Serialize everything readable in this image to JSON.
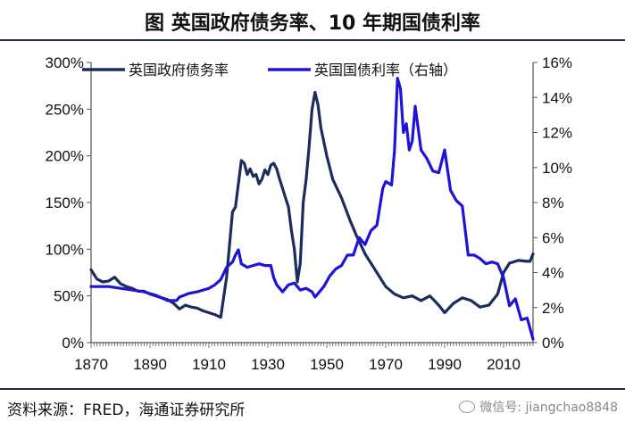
{
  "title": "图    英国政府债务率、10 年期国债利率",
  "source": "资料来源：FRED，海通证券研究所",
  "watermark": "微信号: jiangchao8848",
  "colors": {
    "debt": "#1a2d5c",
    "yield": "#1e13d9"
  },
  "chart_data": {
    "type": "line",
    "x_ticks": [
      "1870",
      "1890",
      "1910",
      "1930",
      "1950",
      "1970",
      "1990",
      "2010"
    ],
    "xlim": [
      1870,
      2020
    ],
    "y_left": {
      "ticks": [
        "0%",
        "50%",
        "100%",
        "150%",
        "200%",
        "250%",
        "300%"
      ],
      "lim": [
        0,
        300
      ]
    },
    "y_right": {
      "ticks": [
        "0%",
        "2%",
        "4%",
        "6%",
        "8%",
        "10%",
        "12%",
        "14%",
        "16%"
      ],
      "lim": [
        0,
        16
      ]
    },
    "series": [
      {
        "name": "英国政府债务率",
        "axis": "left",
        "x": [
          1870,
          1872,
          1874,
          1876,
          1878,
          1880,
          1882,
          1884,
          1886,
          1888,
          1890,
          1892,
          1894,
          1896,
          1898,
          1900,
          1902,
          1904,
          1906,
          1908,
          1910,
          1912,
          1914,
          1916,
          1918,
          1919,
          1920,
          1921,
          1922,
          1923,
          1924,
          1925,
          1926,
          1927,
          1928,
          1929,
          1930,
          1931,
          1932,
          1933,
          1934,
          1935,
          1936,
          1937,
          1938,
          1939,
          1940,
          1941,
          1942,
          1943,
          1944,
          1945,
          1946,
          1947,
          1948,
          1950,
          1952,
          1955,
          1958,
          1960,
          1963,
          1966,
          1970,
          1973,
          1976,
          1979,
          1982,
          1985,
          1988,
          1990,
          1993,
          1996,
          1999,
          2002,
          2005,
          2008,
          2010,
          2012,
          2015,
          2018,
          2019,
          2020
        ],
        "values": [
          78,
          68,
          65,
          66,
          70,
          63,
          60,
          58,
          55,
          55,
          52,
          50,
          48,
          46,
          42,
          36,
          40,
          38,
          37,
          34,
          32,
          30,
          27,
          70,
          140,
          145,
          170,
          195,
          192,
          180,
          186,
          178,
          180,
          170,
          175,
          185,
          180,
          190,
          192,
          186,
          175,
          165,
          155,
          145,
          120,
          100,
          65,
          85,
          150,
          175,
          210,
          250,
          268,
          255,
          230,
          200,
          175,
          155,
          130,
          115,
          95,
          80,
          60,
          52,
          48,
          50,
          45,
          50,
          40,
          32,
          42,
          48,
          45,
          38,
          40,
          52,
          75,
          85,
          88,
          87,
          87,
          95
        ]
      },
      {
        "name": "英国国债利率（右轴）",
        "axis": "right",
        "x": [
          1870,
          1873,
          1876,
          1880,
          1884,
          1888,
          1892,
          1896,
          1899,
          1900,
          1903,
          1906,
          1910,
          1912,
          1914,
          1916,
          1918,
          1919,
          1920,
          1921,
          1922,
          1923,
          1925,
          1927,
          1929,
          1931,
          1932,
          1933,
          1935,
          1937,
          1939,
          1941,
          1943,
          1945,
          1946,
          1947,
          1949,
          1951,
          1953,
          1955,
          1957,
          1959,
          1961,
          1963,
          1965,
          1967,
          1969,
          1970,
          1972,
          1973,
          1974,
          1975,
          1976,
          1977,
          1978,
          1979,
          1980,
          1982,
          1984,
          1986,
          1988,
          1990,
          1992,
          1994,
          1996,
          1998,
          2000,
          2002,
          2004,
          2006,
          2008,
          2010,
          2012,
          2014,
          2016,
          2018,
          2019,
          2020
        ],
        "values": [
          3.2,
          3.2,
          3.2,
          3.1,
          3.0,
          2.9,
          2.7,
          2.4,
          2.4,
          2.6,
          2.8,
          2.9,
          3.1,
          3.3,
          3.6,
          4.3,
          4.6,
          5.0,
          5.3,
          4.5,
          4.4,
          4.3,
          4.4,
          4.5,
          4.4,
          4.4,
          3.7,
          3.3,
          2.9,
          3.3,
          3.4,
          3.0,
          3.1,
          2.9,
          2.6,
          2.8,
          3.2,
          3.8,
          4.2,
          4.4,
          5.0,
          5.0,
          6.0,
          5.6,
          6.4,
          6.7,
          8.8,
          9.2,
          9.0,
          11.0,
          15.1,
          14.5,
          12.0,
          12.5,
          11.0,
          11.5,
          13.5,
          11.0,
          10.5,
          9.8,
          9.7,
          11.0,
          8.7,
          8.1,
          7.8,
          5.0,
          5.0,
          4.8,
          4.5,
          4.6,
          4.5,
          3.7,
          2.1,
          2.5,
          1.3,
          1.4,
          0.8,
          0.2
        ]
      }
    ]
  }
}
